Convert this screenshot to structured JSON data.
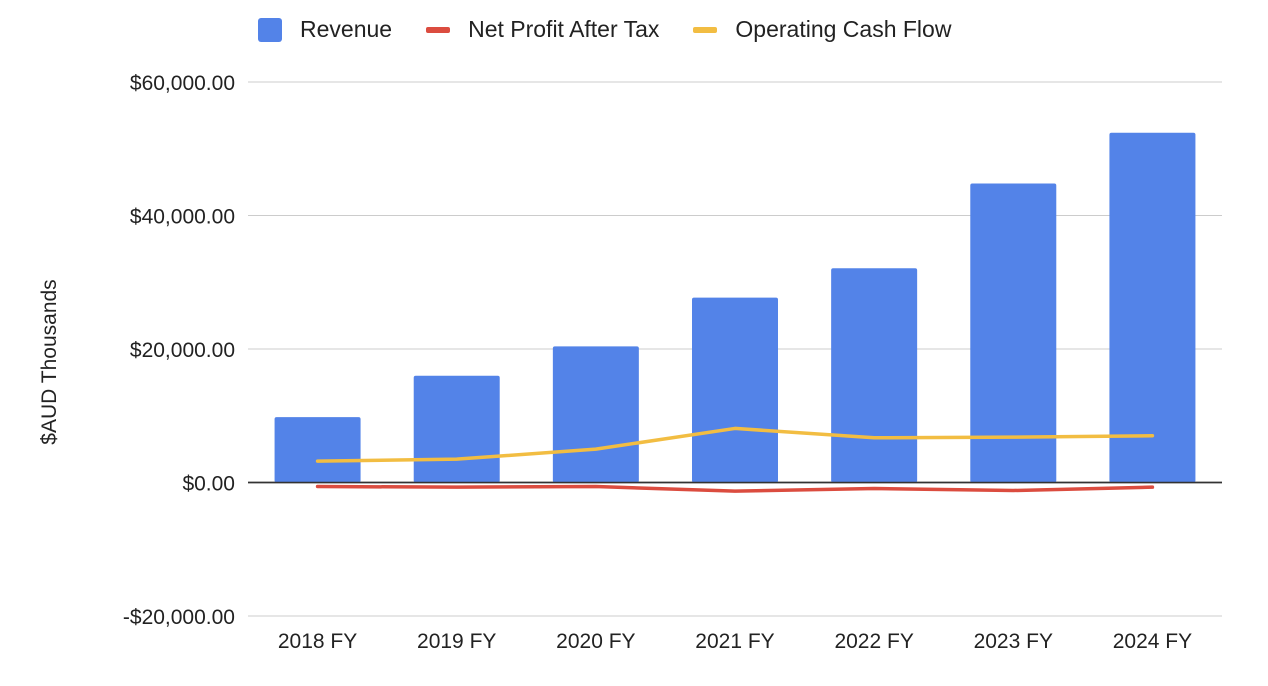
{
  "chart_data": {
    "type": "bar",
    "categories": [
      "2018 FY",
      "2019 FY",
      "2020 FY",
      "2021 FY",
      "2022 FY",
      "2023 FY",
      "2024 FY"
    ],
    "series": [
      {
        "name": "Revenue",
        "kind": "bar",
        "color": "#5383e8",
        "values": [
          9800,
          16000,
          20400,
          27700,
          32100,
          44800,
          52400
        ]
      },
      {
        "name": "Net Profit After Tax",
        "kind": "line",
        "color": "#db4c3f",
        "values": [
          -600,
          -700,
          -600,
          -1300,
          -900,
          -1200,
          -700
        ]
      },
      {
        "name": "Operating Cash Flow",
        "kind": "line",
        "color": "#f2bd42",
        "values": [
          3200,
          3500,
          5000,
          8100,
          6700,
          6800,
          7000
        ]
      }
    ],
    "ylabel": "$AUD Thousands",
    "ylim": [
      -20000,
      60000
    ],
    "yticks": [
      -20000,
      0,
      20000,
      40000,
      60000
    ],
    "ytick_labels": [
      "-$20,000.00",
      "$0.00",
      "$20,000.00",
      "$40,000.00",
      "$60,000.00"
    ],
    "grid": true,
    "legend_position": "top"
  }
}
